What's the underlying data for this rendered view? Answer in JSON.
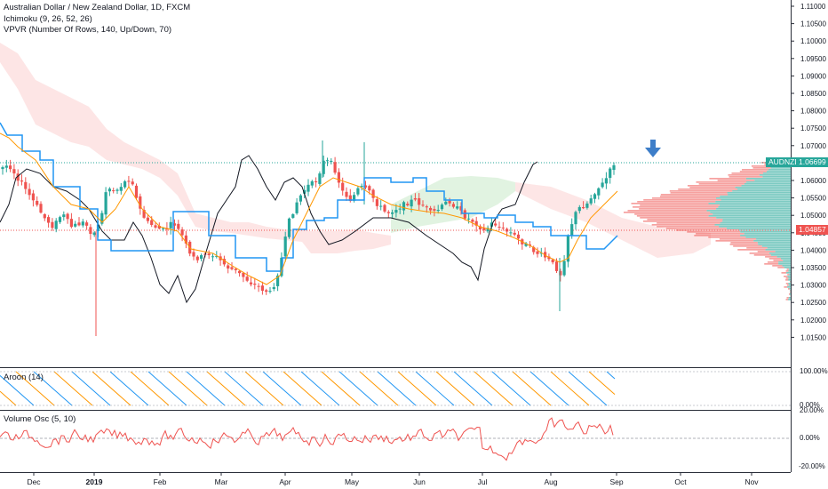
{
  "header": {
    "symbol_line": "Australian Dollar / New Zealand Dollar, 1D, FXCM",
    "ichimoku": "Ichimoku (9, 26, 52, 26)",
    "vpvr": "VPVR (Number Of Rows, 140, Up/Down, 70)"
  },
  "price_axis": {
    "ticks": [
      "1.11000",
      "1.10500",
      "1.10000",
      "1.09500",
      "1.09000",
      "1.08500",
      "1.08000",
      "1.07500",
      "1.07000",
      "1.06500",
      "1.06000",
      "1.05500",
      "1.05000",
      "1.04500",
      "1.04000",
      "1.03500",
      "1.03000",
      "1.02500",
      "1.02000",
      "1.01500"
    ],
    "current_symbol": "AUDNZD",
    "current_price": "1.06699",
    "level_price": "1.04857"
  },
  "aroon": {
    "label": "Aroon (14)",
    "ticks": [
      "100.00%",
      "0.00%"
    ]
  },
  "volume_osc": {
    "label": "Volume Osc (5, 10)",
    "ticks": [
      "20.00%",
      "0.00%",
      "-20.00%"
    ]
  },
  "time_axis": {
    "labels": [
      "Dec",
      "2019",
      "Feb",
      "Mar",
      "Apr",
      "May",
      "Jun",
      "Jul",
      "Aug",
      "Sep",
      "Oct",
      "Nov"
    ]
  },
  "colors": {
    "up": "#26a69a",
    "down": "#ef5350",
    "kijun": "#2196f3",
    "tenkan": "#ff9800",
    "chikou": "#131722",
    "cloud_bear": "#fcdcdc",
    "cloud_bull": "#d9f0da",
    "arrow": "#3d7ec9"
  },
  "icons": [
    "arrow-down-icon"
  ]
}
